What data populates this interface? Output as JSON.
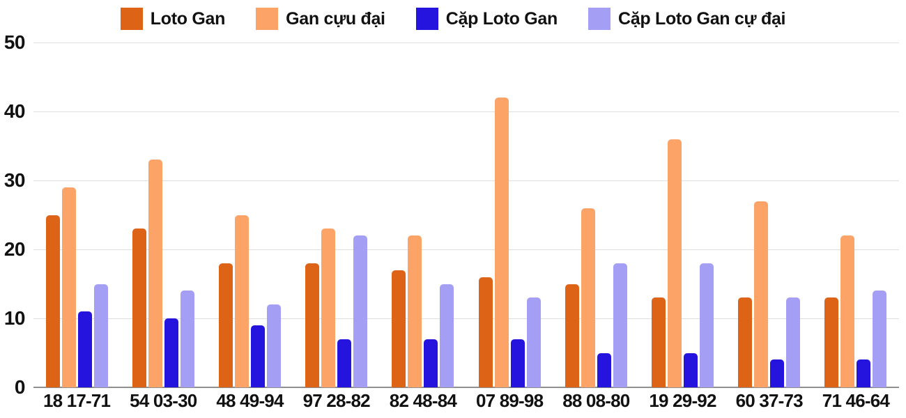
{
  "chart_data": {
    "type": "bar",
    "title": "",
    "categories": [
      "18 17-71",
      "54 03-30",
      "48 49-94",
      "97 28-82",
      "82 48-84",
      "07 89-98",
      "88 08-80",
      "19 29-92",
      "60 37-73",
      "71 46-64"
    ],
    "series": [
      {
        "name": "Loto Gan",
        "color": "#DD6317",
        "values": [
          25,
          23,
          18,
          18,
          17,
          16,
          15,
          13,
          13,
          13
        ]
      },
      {
        "name": "Gan cựu đại",
        "color": "#FCA368",
        "values": [
          29,
          33,
          25,
          23,
          22,
          42,
          26,
          36,
          27,
          22
        ]
      },
      {
        "name": "Cặp Loto Gan",
        "color": "#2414DE",
        "values": [
          11,
          10,
          9,
          7,
          7,
          7,
          5,
          5,
          4,
          4
        ]
      },
      {
        "name": "Cặp Loto Gan cự đại",
        "color": "#A49EF5",
        "values": [
          15,
          14,
          12,
          22,
          15,
          13,
          18,
          18,
          13,
          14
        ]
      }
    ],
    "y_axis": {
      "min": 0,
      "max": 50,
      "tick_step": 10,
      "ticks": [
        0,
        10,
        20,
        30,
        40,
        50
      ]
    },
    "legend_position": "top",
    "grid": true
  },
  "colors": {
    "background": "#FFFFFF",
    "gridline": "#DEDEDE",
    "axis_line": "#8F8F8F",
    "text": "#111111"
  }
}
